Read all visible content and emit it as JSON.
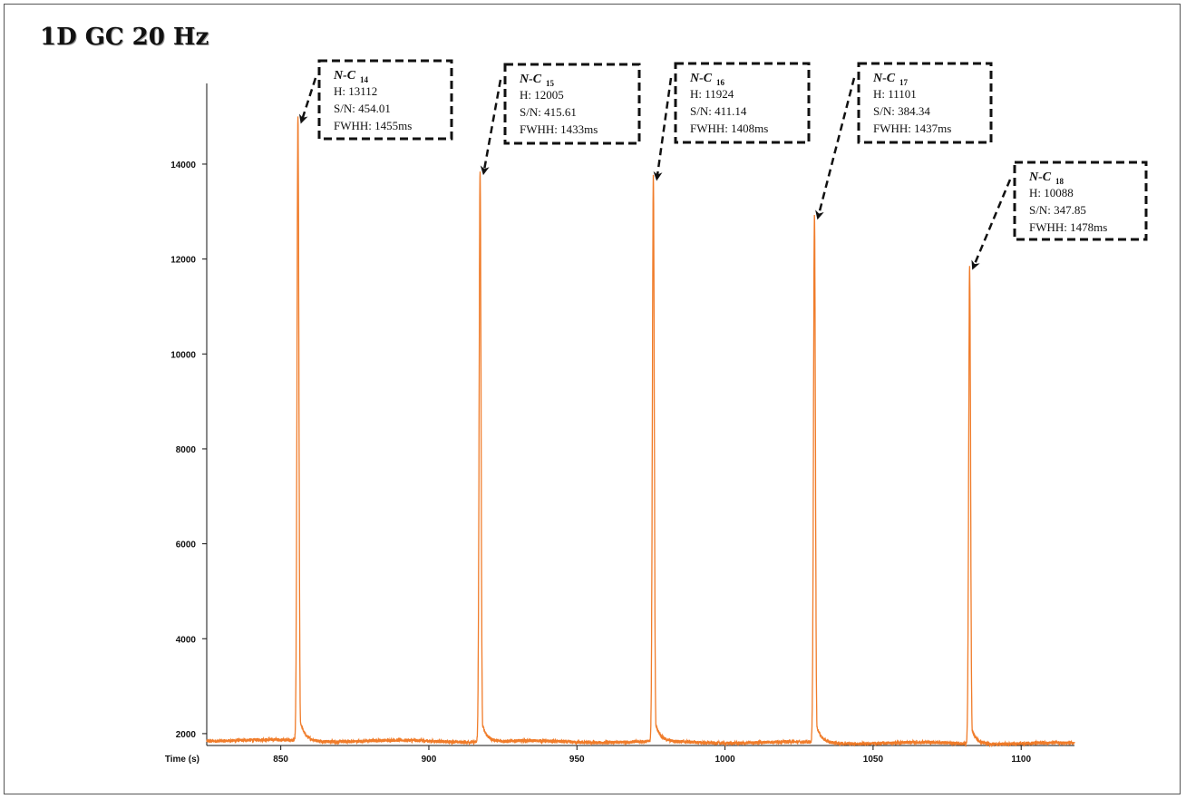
{
  "title": "1D GC 20 Hz",
  "chart_data": {
    "type": "line",
    "title": "1D GC 20 Hz",
    "xlabel": "Time (s)",
    "ylabel": "",
    "xlim": [
      825,
      1118
    ],
    "ylim": [
      1750,
      15700
    ],
    "x_ticks": [
      850,
      900,
      950,
      1000,
      1050,
      1100
    ],
    "y_ticks": [
      2000,
      4000,
      6000,
      8000,
      10000,
      12000,
      14000
    ],
    "baseline": 1860,
    "line_color": "#f07c2a",
    "grid": false,
    "series": [
      {
        "peaks": [
          {
            "time": 855.8,
            "apex": 14980,
            "annotation": {
              "compound": "N-C",
              "subscript": "14",
              "h": "H:  13112",
              "sn": "S/N:  454.01",
              "fwhh": "FWHH: 1455ms"
            }
          },
          {
            "time": 917.3,
            "apex": 13900,
            "annotation": {
              "compound": "N-C",
              "subscript": "15",
              "h": "H:  12005",
              "sn": "S/N:  415.61",
              "fwhh": "FWHH: 1433ms"
            }
          },
          {
            "time": 975.8,
            "apex": 13780,
            "annotation": {
              "compound": "N-C",
              "subscript": "16",
              "h": "H:  11924",
              "sn": "S/N:  411.14",
              "fwhh": "FWHH: 1408ms"
            }
          },
          {
            "time": 1030.2,
            "apex": 12960,
            "annotation": {
              "compound": "N-C",
              "subscript": "17",
              "h": "H:  11101",
              "sn": "S/N:  384.34",
              "fwhh": "FWHH: 1437ms"
            }
          },
          {
            "time": 1082.6,
            "apex": 11900,
            "annotation": {
              "compound": "N-C",
              "subscript": "18",
              "h": "H:  10088",
              "sn": "S/N:  347.85",
              "fwhh": "FWHH: 1478ms"
            }
          }
        ]
      }
    ]
  }
}
